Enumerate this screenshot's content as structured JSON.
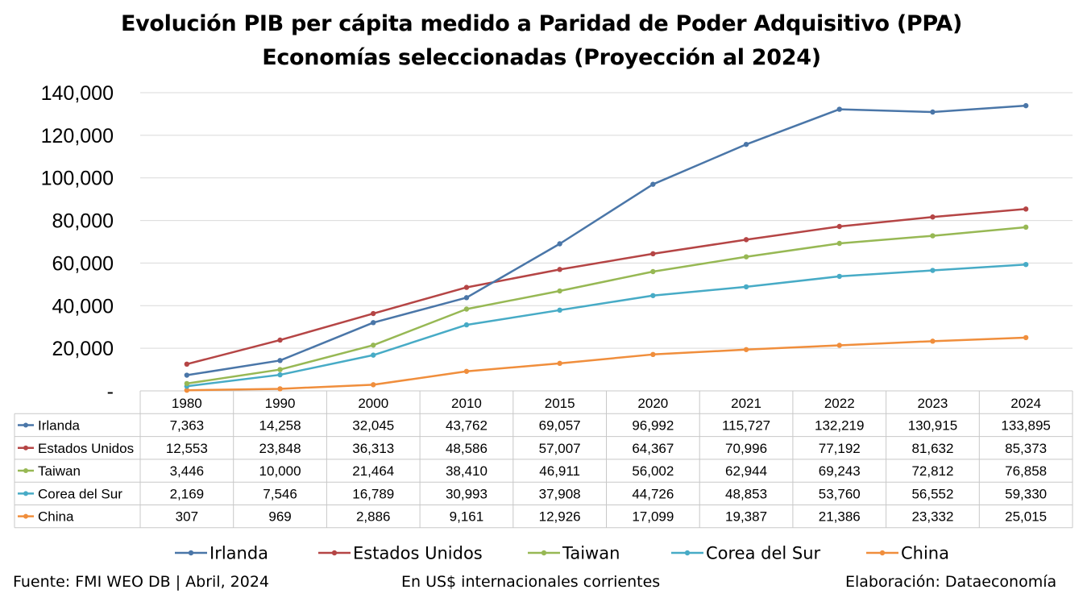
{
  "chart_data": {
    "type": "line",
    "title": "Evolución PIB per cápita medido a Paridad de Poder Adquisitivo (PPA)",
    "subtitle": "Economías seleccionadas (Proyección al 2024)",
    "categories": [
      "1980",
      "1990",
      "2000",
      "2010",
      "2015",
      "2020",
      "2021",
      "2022",
      "2023",
      "2024"
    ],
    "y_ticks": [
      "140,000",
      "120,000",
      "100,000",
      "80,000",
      "60,000",
      "40,000",
      "20,000",
      "-"
    ],
    "ylim": [
      0,
      140000
    ],
    "grid": true,
    "legend_position": "bottom",
    "data_table": true,
    "series": [
      {
        "name": "Irlanda",
        "color": "#4a76a8",
        "values": [
          7363,
          14258,
          32045,
          43762,
          69057,
          96992,
          115727,
          132219,
          130915,
          133895
        ],
        "labels": [
          "7,363",
          "14,258",
          "32,045",
          "43,762",
          "69,057",
          "96,992",
          "115,727",
          "132,219",
          "130,915",
          "133,895"
        ]
      },
      {
        "name": "Estados Unidos",
        "color": "#b54545",
        "values": [
          12553,
          23848,
          36313,
          48586,
          57007,
          64367,
          70996,
          77192,
          81632,
          85373
        ],
        "labels": [
          "12,553",
          "23,848",
          "36,313",
          "48,586",
          "57,007",
          "64,367",
          "70,996",
          "77,192",
          "81,632",
          "85,373"
        ]
      },
      {
        "name": "Taiwan",
        "color": "#97b854",
        "values": [
          3446,
          10000,
          21464,
          38410,
          46911,
          56002,
          62944,
          69243,
          72812,
          76858
        ],
        "labels": [
          "3,446",
          "10,000",
          "21,464",
          "38,410",
          "46,911",
          "56,002",
          "62,944",
          "69,243",
          "72,812",
          "76,858"
        ]
      },
      {
        "name": "Corea del Sur",
        "color": "#47abc6",
        "values": [
          2169,
          7546,
          16789,
          30993,
          37908,
          44726,
          48853,
          53760,
          56552,
          59330
        ],
        "labels": [
          "2,169",
          "7,546",
          "16,789",
          "30,993",
          "37,908",
          "44,726",
          "48,853",
          "53,760",
          "56,552",
          "59,330"
        ]
      },
      {
        "name": "China",
        "color": "#f08e3c",
        "values": [
          307,
          969,
          2886,
          9161,
          12926,
          17099,
          19387,
          21386,
          23332,
          25015
        ],
        "labels": [
          "307",
          "969",
          "2,886",
          "9,161",
          "12,926",
          "17,099",
          "19,387",
          "21,386",
          "23,332",
          "25,015"
        ]
      }
    ]
  },
  "footer": {
    "source": "Fuente: FMI WEO DB | Abril, 2024",
    "units": "En US$ internacionales corrientes",
    "credit": "Elaboración: Dataeconomía"
  }
}
